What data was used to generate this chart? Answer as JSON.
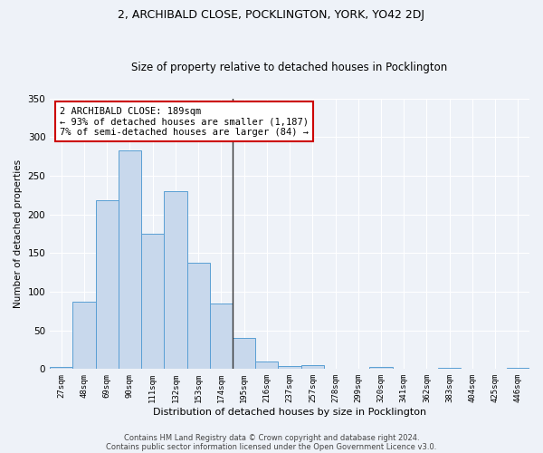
{
  "title": "2, ARCHIBALD CLOSE, POCKLINGTON, YORK, YO42 2DJ",
  "subtitle": "Size of property relative to detached houses in Pocklington",
  "xlabel": "Distribution of detached houses by size in Pocklington",
  "ylabel": "Number of detached properties",
  "bar_color": "#c8d8ec",
  "bar_edge_color": "#5a9fd4",
  "vline_x_index": 8,
  "vline_color": "#333333",
  "categories": [
    "27sqm",
    "48sqm",
    "69sqm",
    "90sqm",
    "111sqm",
    "132sqm",
    "153sqm",
    "174sqm",
    "195sqm",
    "216sqm",
    "237sqm",
    "257sqm",
    "278sqm",
    "299sqm",
    "320sqm",
    "341sqm",
    "362sqm",
    "383sqm",
    "404sqm",
    "425sqm",
    "446sqm"
  ],
  "values": [
    3,
    87,
    218,
    283,
    175,
    230,
    138,
    85,
    40,
    10,
    4,
    5,
    0,
    0,
    3,
    0,
    0,
    1,
    0,
    0,
    2
  ],
  "annotation_text": "2 ARCHIBALD CLOSE: 189sqm\n← 93% of detached houses are smaller (1,187)\n7% of semi-detached houses are larger (84) →",
  "annotation_box_color": "#ffffff",
  "annotation_box_edge_color": "#cc0000",
  "footer1": "Contains HM Land Registry data © Crown copyright and database right 2024.",
  "footer2": "Contains public sector information licensed under the Open Government Licence v3.0.",
  "bg_color": "#eef2f8",
  "grid_color": "#ffffff",
  "ylim": [
    0,
    350
  ],
  "yticks": [
    0,
    50,
    100,
    150,
    200,
    250,
    300,
    350
  ],
  "title_fontsize": 9,
  "subtitle_fontsize": 8.5,
  "annotation_fontsize": 7.5
}
